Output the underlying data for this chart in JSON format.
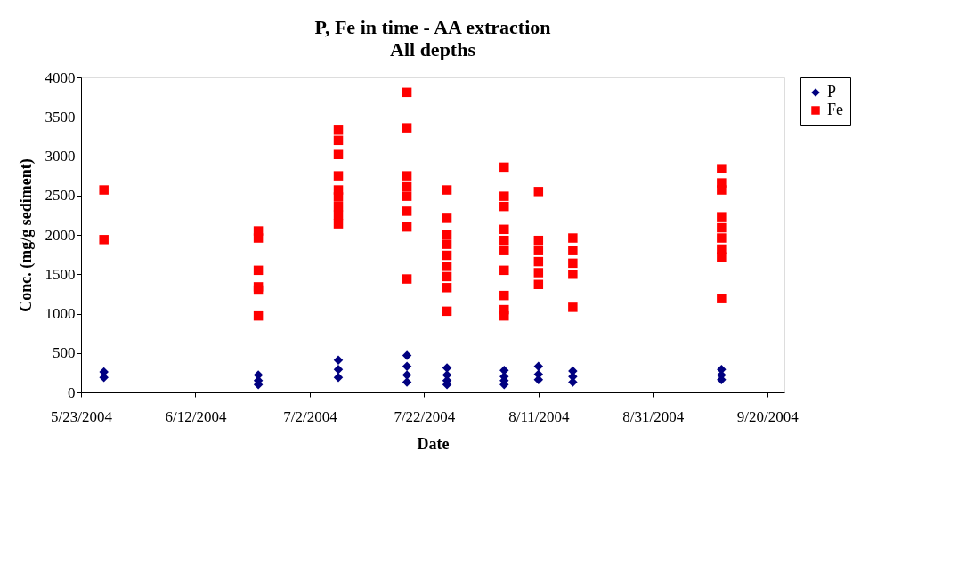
{
  "chart_data": {
    "type": "scatter",
    "title": "P, Fe in time - AA extraction",
    "subtitle": "All depths",
    "xlabel": "Date",
    "ylabel": "Conc. (mg/g sediment)",
    "xlim": [
      "2004-05-23",
      "2004-09-23"
    ],
    "xticks": [
      {
        "value": "2004-05-23",
        "label": "5/23/2004"
      },
      {
        "value": "2004-06-12",
        "label": "6/12/2004"
      },
      {
        "value": "2004-07-02",
        "label": "7/2/2004"
      },
      {
        "value": "2004-07-22",
        "label": "7/22/2004"
      },
      {
        "value": "2004-08-11",
        "label": "8/11/2004"
      },
      {
        "value": "2004-08-31",
        "label": "8/31/2004"
      },
      {
        "value": "2004-09-20",
        "label": "9/20/2004"
      }
    ],
    "ylim": [
      0,
      4000
    ],
    "yticks": [
      0,
      500,
      1000,
      1500,
      2000,
      2500,
      3000,
      3500,
      4000
    ],
    "grid": false,
    "legend": "right",
    "series": [
      {
        "name": "P",
        "color": "#000080",
        "marker": "diamond",
        "x": [
          "2004-05-27",
          "2004-05-27",
          "2004-06-23",
          "2004-06-23",
          "2004-06-23",
          "2004-07-07",
          "2004-07-07",
          "2004-07-07",
          "2004-07-19",
          "2004-07-19",
          "2004-07-19",
          "2004-07-19",
          "2004-07-26",
          "2004-07-26",
          "2004-07-26",
          "2004-07-26",
          "2004-08-05",
          "2004-08-05",
          "2004-08-05",
          "2004-08-05",
          "2004-08-11",
          "2004-08-11",
          "2004-08-11",
          "2004-08-17",
          "2004-08-17",
          "2004-08-17",
          "2004-09-12",
          "2004-09-12",
          "2004-09-12"
        ],
        "values": [
          260,
          190,
          220,
          150,
          100,
          410,
          290,
          190,
          470,
          330,
          220,
          130,
          310,
          220,
          150,
          100,
          280,
          200,
          150,
          100,
          330,
          230,
          160,
          270,
          200,
          130,
          290,
          220,
          160
        ]
      },
      {
        "name": "Fe",
        "color": "#ff0000",
        "marker": "square",
        "x": [
          "2004-05-27",
          "2004-05-27",
          "2004-06-23",
          "2004-06-23",
          "2004-06-23",
          "2004-06-23",
          "2004-06-23",
          "2004-06-23",
          "2004-07-07",
          "2004-07-07",
          "2004-07-07",
          "2004-07-07",
          "2004-07-07",
          "2004-07-07",
          "2004-07-07",
          "2004-07-07",
          "2004-07-07",
          "2004-07-19",
          "2004-07-19",
          "2004-07-19",
          "2004-07-19",
          "2004-07-19",
          "2004-07-19",
          "2004-07-19",
          "2004-07-19",
          "2004-07-26",
          "2004-07-26",
          "2004-07-26",
          "2004-07-26",
          "2004-07-26",
          "2004-07-26",
          "2004-07-26",
          "2004-07-26",
          "2004-07-26",
          "2004-08-05",
          "2004-08-05",
          "2004-08-05",
          "2004-08-05",
          "2004-08-05",
          "2004-08-05",
          "2004-08-05",
          "2004-08-05",
          "2004-08-05",
          "2004-08-05",
          "2004-08-11",
          "2004-08-11",
          "2004-08-11",
          "2004-08-11",
          "2004-08-11",
          "2004-08-11",
          "2004-08-17",
          "2004-08-17",
          "2004-08-17",
          "2004-08-17",
          "2004-08-17",
          "2004-09-12",
          "2004-09-12",
          "2004-09-12",
          "2004-09-12",
          "2004-09-12",
          "2004-09-12",
          "2004-09-12",
          "2004-09-12",
          "2004-09-12"
        ],
        "values": [
          2570,
          1940,
          2050,
          1960,
          1550,
          1340,
          1300,
          970,
          3330,
          3200,
          3020,
          2750,
          2570,
          2480,
          2360,
          2250,
          2140,
          3810,
          3360,
          2750,
          2610,
          2490,
          2300,
          2100,
          1440,
          2570,
          2210,
          2000,
          1880,
          1740,
          1600,
          1470,
          1330,
          1030,
          2860,
          2490,
          2360,
          2070,
          1930,
          1800,
          1550,
          1230,
          1050,
          970,
          2550,
          1930,
          1800,
          1660,
          1520,
          1370,
          1960,
          1800,
          1640,
          1500,
          1080,
          2840,
          2660,
          2570,
          2230,
          2090,
          1960,
          1820,
          1720,
          1190
        ]
      }
    ]
  }
}
